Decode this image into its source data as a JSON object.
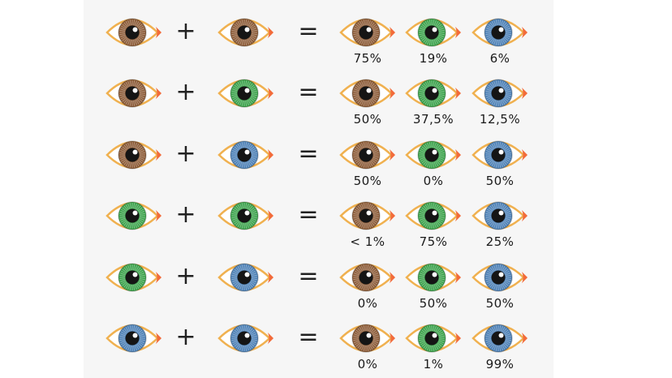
{
  "symbols": {
    "plus": "+",
    "equals": "="
  },
  "iris_colors": {
    "brown": "#8b5a36",
    "green": "#3aa14a",
    "blue": "#4b7fb5"
  },
  "outline_color": "#f0b150",
  "tear_color": "#f26b3a",
  "rows": [
    {
      "parent1": "brown",
      "parent2": "brown",
      "results": [
        {
          "color": "brown",
          "percent": "75%"
        },
        {
          "color": "green",
          "percent": "19%"
        },
        {
          "color": "blue",
          "percent": "6%"
        }
      ]
    },
    {
      "parent1": "brown",
      "parent2": "green",
      "results": [
        {
          "color": "brown",
          "percent": "50%"
        },
        {
          "color": "green",
          "percent": "37,5%"
        },
        {
          "color": "blue",
          "percent": "12,5%"
        }
      ]
    },
    {
      "parent1": "brown",
      "parent2": "blue",
      "results": [
        {
          "color": "brown",
          "percent": "50%"
        },
        {
          "color": "green",
          "percent": "0%"
        },
        {
          "color": "blue",
          "percent": "50%"
        }
      ]
    },
    {
      "parent1": "green",
      "parent2": "green",
      "results": [
        {
          "color": "brown",
          "percent": "< 1%"
        },
        {
          "color": "green",
          "percent": "75%"
        },
        {
          "color": "blue",
          "percent": "25%"
        }
      ]
    },
    {
      "parent1": "green",
      "parent2": "blue",
      "results": [
        {
          "color": "brown",
          "percent": "0%"
        },
        {
          "color": "green",
          "percent": "50%"
        },
        {
          "color": "blue",
          "percent": "50%"
        }
      ]
    },
    {
      "parent1": "blue",
      "parent2": "blue",
      "results": [
        {
          "color": "brown",
          "percent": "0%"
        },
        {
          "color": "green",
          "percent": "1%"
        },
        {
          "color": "blue",
          "percent": "99%"
        }
      ]
    }
  ]
}
